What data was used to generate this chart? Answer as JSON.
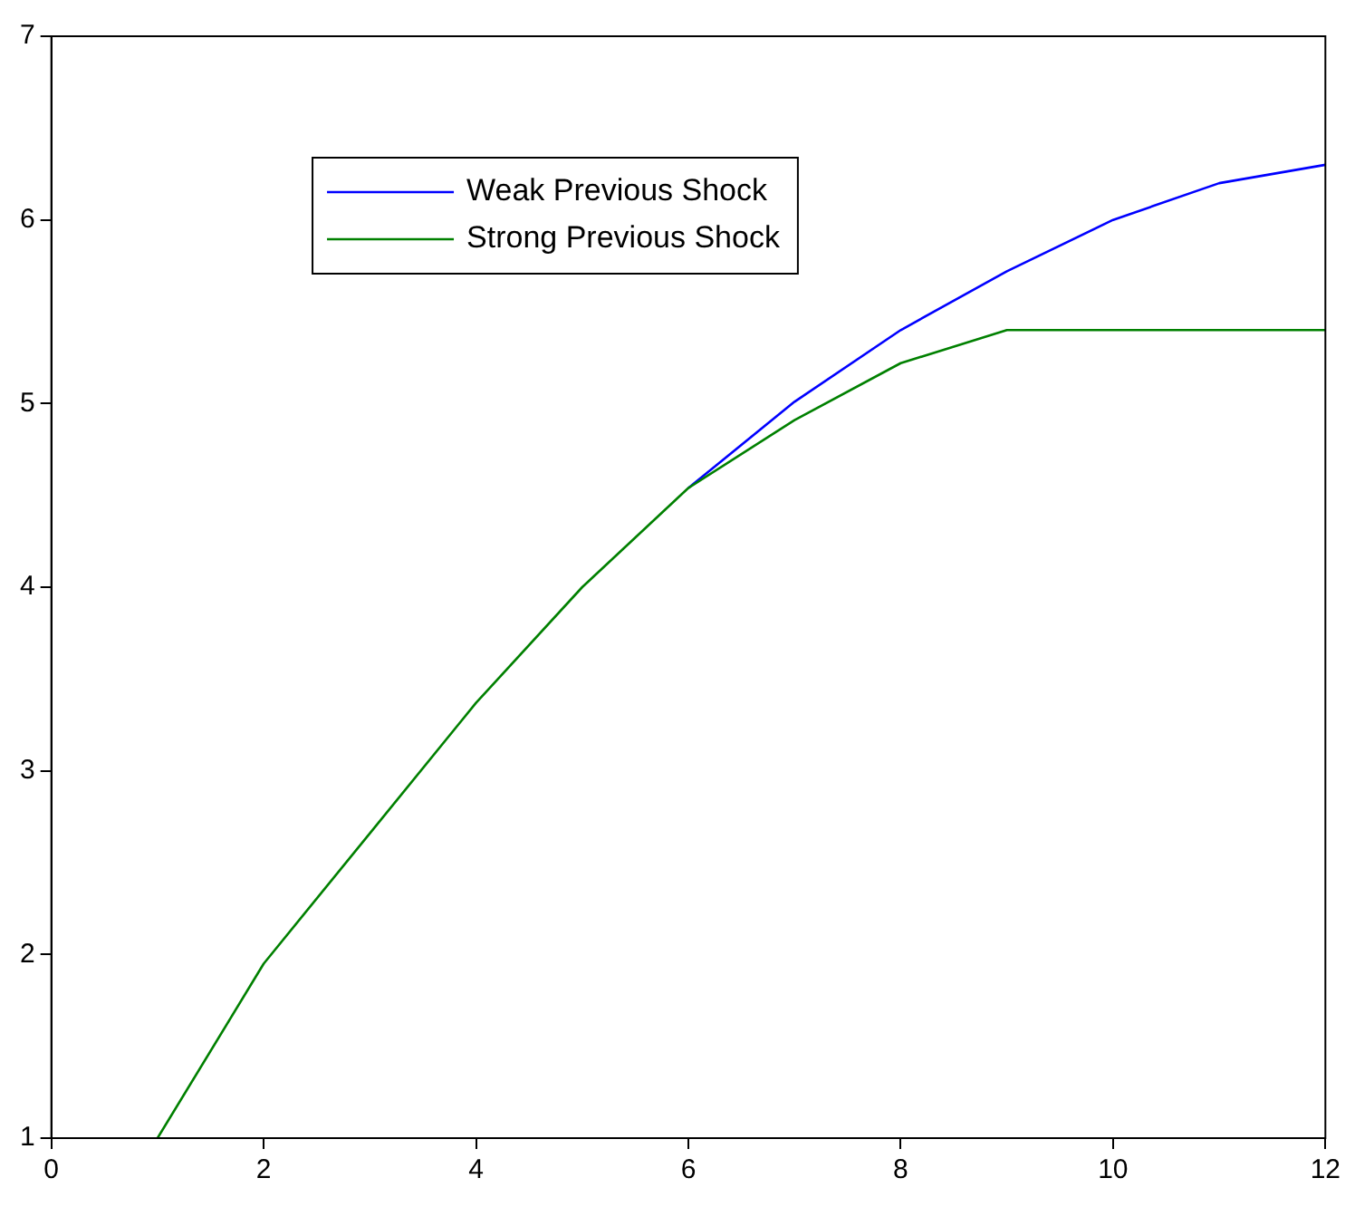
{
  "chart_data": {
    "type": "line",
    "x": [
      1,
      2,
      3,
      4,
      5,
      6,
      7,
      8,
      9,
      10,
      11,
      12
    ],
    "series": [
      {
        "name": "Weak Previous Shock",
        "color": "#0000ff",
        "values": [
          null,
          null,
          null,
          null,
          null,
          4.54,
          5.01,
          5.4,
          5.72,
          6.0,
          6.2,
          6.3
        ]
      },
      {
        "name": "Strong Previous Shock",
        "color": "#008000",
        "values": [
          1,
          1.95,
          2.66,
          3.37,
          4.0,
          4.54,
          4.91,
          5.22,
          5.4,
          5.4,
          5.4,
          5.4
        ]
      }
    ],
    "xlim": [
      0,
      12
    ],
    "xticks": [
      0,
      2,
      4,
      6,
      8,
      10,
      12
    ],
    "ylim": [
      1,
      7
    ],
    "yticks": [
      1,
      2,
      3,
      4,
      5,
      6,
      7
    ],
    "grid": false,
    "legend": "top left",
    "marker": "none",
    "line_style": "solid"
  }
}
